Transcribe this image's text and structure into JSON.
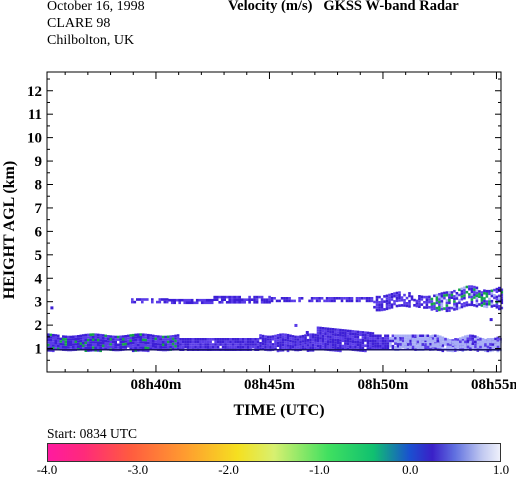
{
  "header": {
    "date": "October  16, 1998",
    "campaign": "CLARE 98",
    "location": "Chilbolton, UK",
    "variable": "Velocity (m/s)",
    "instrument": "GKSS  W-band Radar"
  },
  "chart_data": {
    "type": "heatmap",
    "xlabel": "TIME (UTC)",
    "ylabel": "HEIGHT AGL (km)",
    "x_tick_labels": [
      "08h40m",
      "08h45m",
      "08h50m",
      "08h55m"
    ],
    "x_tick_minutes": [
      40,
      45,
      50,
      55
    ],
    "x_range_minutes": [
      35.2,
      55.2
    ],
    "y_ticks": [
      1,
      2,
      3,
      4,
      5,
      6,
      7,
      8,
      9,
      10,
      11,
      12
    ],
    "y_range_km": [
      0,
      12.8
    ],
    "start_label": "Start: 0834 UTC",
    "colorbar": {
      "label_values": [
        "-4.0",
        "-3.0",
        "-2.0",
        "-1.0",
        "0.0",
        "1.0"
      ],
      "range": [
        -4.0,
        1.0
      ]
    },
    "regions": [
      {
        "desc": "low layer",
        "t0": 35.2,
        "t1": 55.2,
        "z0": 0.95,
        "z1": 1.6,
        "v": 0.0
      },
      {
        "desc": "upper layer",
        "t0": 38.9,
        "t1": 55.2,
        "z0": 2.85,
        "z1": 3.5,
        "v": 0.0
      },
      {
        "desc": "light band",
        "t0": 50.5,
        "t1": 55.2,
        "z0": 1.0,
        "z1": 1.5,
        "v": 0.6
      }
    ]
  },
  "colors": {
    "dark_blue": "#3d1fd6",
    "mid_blue": "#5a3ce8",
    "light_blue": "#a8aef5",
    "green": "#15a64a",
    "dark_line": "#1a1466"
  }
}
